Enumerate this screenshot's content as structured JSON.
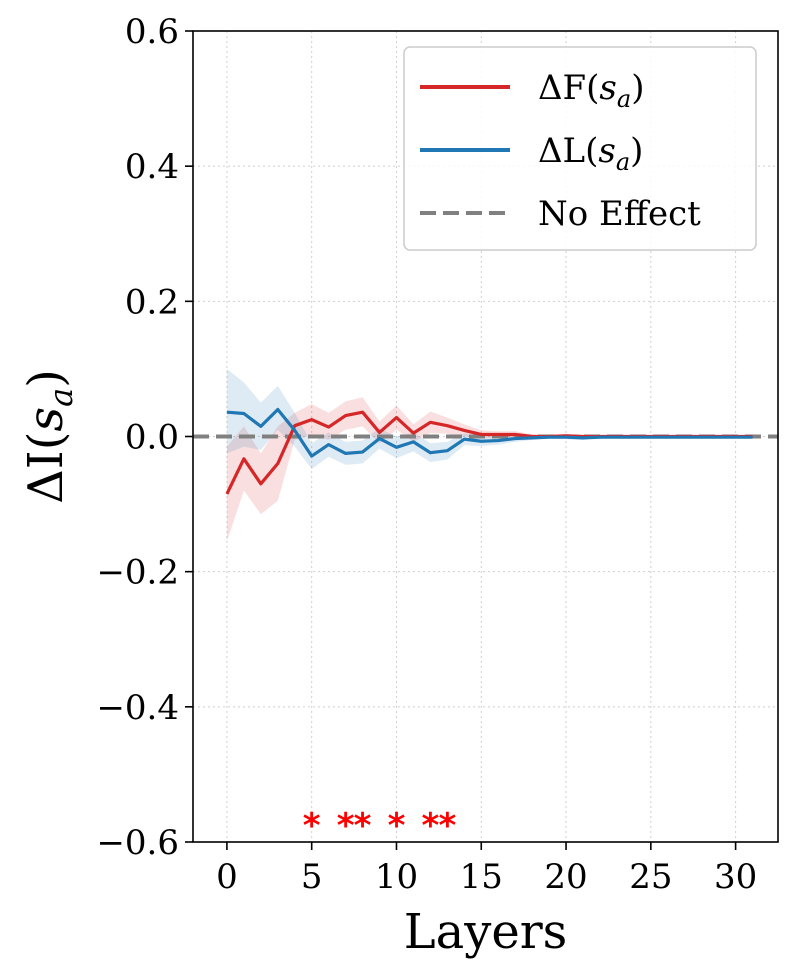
{
  "chart_data": {
    "type": "line",
    "title": "",
    "xlabel": "Layers",
    "ylabel": "ΔI(s_a)",
    "xlim": [
      -2,
      32.5
    ],
    "ylim": [
      -0.6,
      0.6
    ],
    "xticks": [
      0,
      5,
      10,
      15,
      20,
      25,
      30
    ],
    "xtick_labels": [
      "0",
      "5",
      "10",
      "15",
      "20",
      "25",
      "30"
    ],
    "yticks": [
      -0.6,
      -0.4,
      -0.2,
      0.0,
      0.2,
      0.4,
      0.6
    ],
    "ytick_labels": [
      "−0.6",
      "−0.4",
      "−0.2",
      "0.0",
      "0.2",
      "0.4",
      "0.6"
    ],
    "grid": true,
    "legend_position": "top-right",
    "x": [
      0,
      1,
      2,
      3,
      4,
      5,
      6,
      7,
      8,
      9,
      10,
      11,
      12,
      13,
      14,
      15,
      16,
      17,
      18,
      19,
      20,
      21,
      22,
      23,
      24,
      25,
      26,
      27,
      28,
      29,
      30,
      31
    ],
    "series": [
      {
        "name": "ΔF(s_a)",
        "legend_main": "ΔF(",
        "legend_var": "s",
        "legend_sub": "a",
        "legend_close": ")",
        "color": "#d62728",
        "style": "solid",
        "values": [
          -0.085,
          -0.033,
          -0.07,
          -0.04,
          0.016,
          0.025,
          0.014,
          0.031,
          0.036,
          0.006,
          0.028,
          0.005,
          0.021,
          0.016,
          0.009,
          0.003,
          0.003,
          0.003,
          0.0,
          0.0,
          0.001,
          0.0,
          0.0,
          0.0,
          0.0,
          0.0,
          0.0,
          0.0,
          0.0,
          0.0,
          0.0,
          0.0
        ],
        "lower": [
          -0.155,
          -0.08,
          -0.115,
          -0.095,
          -0.005,
          0.002,
          -0.005,
          0.01,
          0.015,
          -0.01,
          0.01,
          -0.008,
          0.005,
          0.004,
          0.0,
          -0.003,
          -0.002,
          -0.002,
          -0.003,
          -0.002,
          -0.002,
          -0.002,
          -0.002,
          -0.002,
          -0.002,
          -0.002,
          -0.002,
          -0.002,
          -0.002,
          -0.002,
          -0.002,
          -0.002
        ],
        "upper": [
          -0.015,
          0.015,
          -0.025,
          0.015,
          0.035,
          0.048,
          0.035,
          0.052,
          0.058,
          0.022,
          0.046,
          0.018,
          0.037,
          0.028,
          0.018,
          0.009,
          0.008,
          0.008,
          0.003,
          0.002,
          0.004,
          0.002,
          0.002,
          0.002,
          0.002,
          0.002,
          0.002,
          0.002,
          0.002,
          0.002,
          0.002,
          0.002
        ]
      },
      {
        "name": "ΔL(s_a)",
        "legend_main": "ΔL(",
        "legend_var": "s",
        "legend_sub": "a",
        "legend_close": ")",
        "color": "#1f77b4",
        "style": "solid",
        "values": [
          0.036,
          0.034,
          0.015,
          0.04,
          0.009,
          -0.029,
          -0.012,
          -0.025,
          -0.023,
          -0.003,
          -0.016,
          -0.008,
          -0.024,
          -0.021,
          -0.004,
          -0.007,
          -0.006,
          -0.003,
          -0.002,
          -0.001,
          -0.001,
          -0.002,
          -0.001,
          -0.001,
          -0.001,
          -0.001,
          -0.001,
          -0.001,
          -0.001,
          -0.001,
          -0.001,
          -0.001
        ],
        "lower": [
          -0.025,
          -0.015,
          -0.02,
          0.01,
          -0.015,
          -0.048,
          -0.03,
          -0.042,
          -0.04,
          -0.018,
          -0.032,
          -0.022,
          -0.038,
          -0.034,
          -0.013,
          -0.014,
          -0.012,
          -0.008,
          -0.005,
          -0.003,
          -0.004,
          -0.005,
          -0.003,
          -0.003,
          -0.003,
          -0.003,
          -0.003,
          -0.003,
          -0.003,
          -0.003,
          -0.003,
          -0.003
        ],
        "upper": [
          0.1,
          0.08,
          0.05,
          0.075,
          0.035,
          -0.01,
          0.006,
          -0.008,
          -0.006,
          0.012,
          0.0,
          0.006,
          -0.01,
          -0.008,
          0.005,
          0.0,
          0.0,
          0.002,
          0.001,
          0.001,
          0.002,
          0.001,
          0.001,
          0.001,
          0.001,
          0.001,
          0.001,
          0.001,
          0.001,
          0.001,
          0.001,
          0.001
        ]
      },
      {
        "name": "No Effect",
        "legend_main": "No Effect",
        "color": "#808080",
        "style": "dashed",
        "y_constant": 0.0
      }
    ],
    "annotations": {
      "significance_marker": "*",
      "significance_color": "#ff0000",
      "significance_y": -0.56,
      "significance_layers": [
        5,
        7,
        8,
        10,
        12,
        13
      ]
    }
  }
}
